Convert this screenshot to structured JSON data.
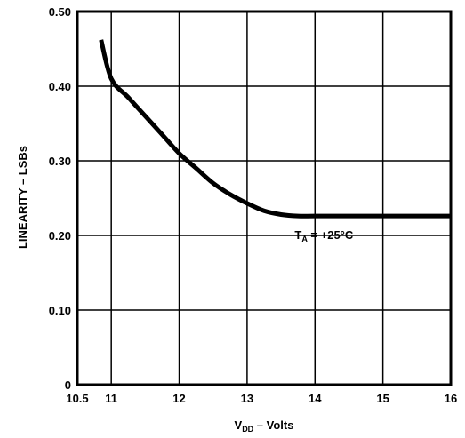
{
  "chart_data": {
    "type": "line",
    "xlabel": {
      "main": "V",
      "sub": "DD",
      "rest": " – Volts"
    },
    "ylabel": "LINEARITY – LSBs",
    "xlim": [
      10.5,
      16
    ],
    "ylim": [
      0,
      0.5
    ],
    "x_ticks": [
      10.5,
      11,
      12,
      13,
      14,
      15,
      16
    ],
    "x_tick_labels": [
      "10.5",
      "11",
      "12",
      "13",
      "14",
      "15",
      "16"
    ],
    "y_ticks": [
      0,
      0.1,
      0.2,
      0.3,
      0.4,
      0.5
    ],
    "y_tick_labels": [
      "0",
      "0.10",
      "0.20",
      "0.30",
      "0.40",
      "0.50"
    ],
    "grid": true,
    "annotation": {
      "main": "T",
      "sub": "A",
      "rest": " = +25°C",
      "x": 13.7,
      "y": 0.195
    },
    "series": [
      {
        "color": "#000000",
        "x": [
          10.85,
          11.0,
          11.25,
          11.5,
          11.75,
          12.0,
          12.25,
          12.5,
          12.75,
          13.0,
          13.25,
          13.5,
          13.75,
          14.0,
          14.5,
          15.0,
          15.5,
          16.0
        ],
        "y": [
          0.462,
          0.41,
          0.385,
          0.36,
          0.335,
          0.31,
          0.29,
          0.27,
          0.255,
          0.243,
          0.233,
          0.228,
          0.226,
          0.226,
          0.226,
          0.226,
          0.226,
          0.226
        ]
      }
    ]
  }
}
